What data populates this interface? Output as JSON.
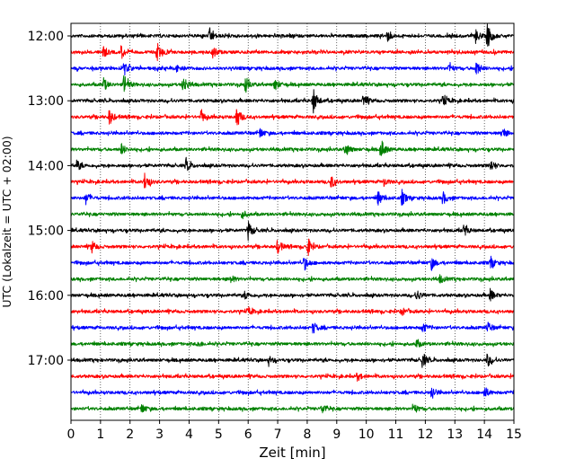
{
  "chart_data": {
    "type": "line",
    "subtype": "helicorder / seismogram drum plot",
    "xlabel": "Zeit  [min]",
    "ylabel": "UTC (Lokalzeit = UTC + 02:00)",
    "xlim": [
      0,
      15
    ],
    "x_ticks": [
      0,
      1,
      2,
      3,
      4,
      5,
      6,
      7,
      8,
      9,
      10,
      11,
      12,
      13,
      14,
      15
    ],
    "x_tick_labels": [
      "0",
      "1",
      "2",
      "3",
      "4",
      "5",
      "6",
      "7",
      "8",
      "9",
      "10",
      "11",
      "12",
      "13",
      "14",
      "15"
    ],
    "y_tick_labels": [
      "12:00",
      "13:00",
      "14:00",
      "15:00",
      "16:00",
      "17:00"
    ],
    "trace_interval_min": 15,
    "grid": "vertical dotted lines at each minute",
    "trace_colors": [
      "#000000",
      "#ff0000",
      "#0000ff",
      "#008000"
    ],
    "traces": [
      {
        "start": "12:00",
        "events": [
          [
            4.7,
            0.5
          ],
          [
            10.7,
            0.45
          ],
          [
            13.7,
            0.5
          ],
          [
            14.1,
            1.0
          ]
        ]
      },
      {
        "start": "12:15",
        "events": [
          [
            1.1,
            0.45
          ],
          [
            1.7,
            0.5
          ],
          [
            2.9,
            0.8
          ],
          [
            4.8,
            0.5
          ]
        ]
      },
      {
        "start": "12:30",
        "events": [
          [
            1.8,
            0.5
          ],
          [
            3.6,
            0.35
          ],
          [
            12.8,
            0.35
          ],
          [
            13.7,
            0.7
          ]
        ]
      },
      {
        "start": "12:45",
        "events": [
          [
            1.1,
            0.5
          ],
          [
            1.8,
            0.8
          ],
          [
            3.8,
            0.75
          ],
          [
            5.9,
            0.65
          ],
          [
            6.9,
            0.45
          ]
        ]
      },
      {
        "start": "13:00",
        "events": [
          [
            8.2,
            1.0
          ],
          [
            9.9,
            0.5
          ],
          [
            12.6,
            0.45
          ]
        ]
      },
      {
        "start": "13:15",
        "events": [
          [
            1.3,
            0.6
          ],
          [
            4.4,
            0.45
          ],
          [
            5.6,
            0.9
          ]
        ]
      },
      {
        "start": "13:30",
        "events": [
          [
            6.4,
            0.35
          ],
          [
            14.6,
            0.45
          ]
        ]
      },
      {
        "start": "13:45",
        "events": [
          [
            1.7,
            0.45
          ],
          [
            9.3,
            0.55
          ],
          [
            10.5,
            0.75
          ]
        ]
      },
      {
        "start": "14:00",
        "events": [
          [
            0.2,
            0.4
          ],
          [
            3.9,
            0.5
          ],
          [
            14.2,
            0.45
          ]
        ]
      },
      {
        "start": "14:15",
        "events": [
          [
            2.5,
            0.7
          ],
          [
            8.8,
            0.5
          ],
          [
            10.6,
            0.3
          ]
        ]
      },
      {
        "start": "14:30",
        "events": [
          [
            0.5,
            0.45
          ],
          [
            10.4,
            0.55
          ],
          [
            11.2,
            0.6
          ],
          [
            12.6,
            0.45
          ]
        ]
      },
      {
        "start": "14:45",
        "events": [
          [
            5.8,
            0.3
          ]
        ]
      },
      {
        "start": "15:00",
        "events": [
          [
            6.0,
            0.7
          ],
          [
            13.3,
            0.45
          ]
        ]
      },
      {
        "start": "15:15",
        "events": [
          [
            0.7,
            0.45
          ],
          [
            7.0,
            0.55
          ],
          [
            8.0,
            0.8
          ]
        ]
      },
      {
        "start": "15:30",
        "events": [
          [
            7.9,
            0.55
          ],
          [
            12.2,
            0.5
          ],
          [
            14.2,
            0.5
          ]
        ]
      },
      {
        "start": "15:45",
        "events": [
          [
            5.4,
            0.3
          ],
          [
            12.5,
            0.3
          ]
        ]
      },
      {
        "start": "16:00",
        "events": [
          [
            5.9,
            0.3
          ],
          [
            11.7,
            0.45
          ],
          [
            14.2,
            0.45
          ]
        ]
      },
      {
        "start": "16:15",
        "events": [
          [
            6.0,
            0.3
          ],
          [
            11.2,
            0.3
          ]
        ]
      },
      {
        "start": "16:30",
        "events": [
          [
            8.2,
            0.45
          ],
          [
            11.9,
            0.4
          ],
          [
            14.1,
            0.45
          ]
        ]
      },
      {
        "start": "16:45",
        "events": [
          [
            4.3,
            0.25
          ],
          [
            11.7,
            0.3
          ]
        ]
      },
      {
        "start": "17:00",
        "events": [
          [
            6.7,
            0.3
          ],
          [
            11.9,
            0.6
          ],
          [
            14.1,
            0.5
          ]
        ]
      },
      {
        "start": "17:15",
        "events": [
          [
            9.7,
            0.3
          ]
        ]
      },
      {
        "start": "17:30",
        "events": [
          [
            12.2,
            0.5
          ],
          [
            14.0,
            0.45
          ]
        ]
      },
      {
        "start": "17:45",
        "events": [
          [
            2.4,
            0.35
          ],
          [
            8.5,
            0.4
          ],
          [
            11.6,
            0.4
          ]
        ]
      }
    ]
  }
}
